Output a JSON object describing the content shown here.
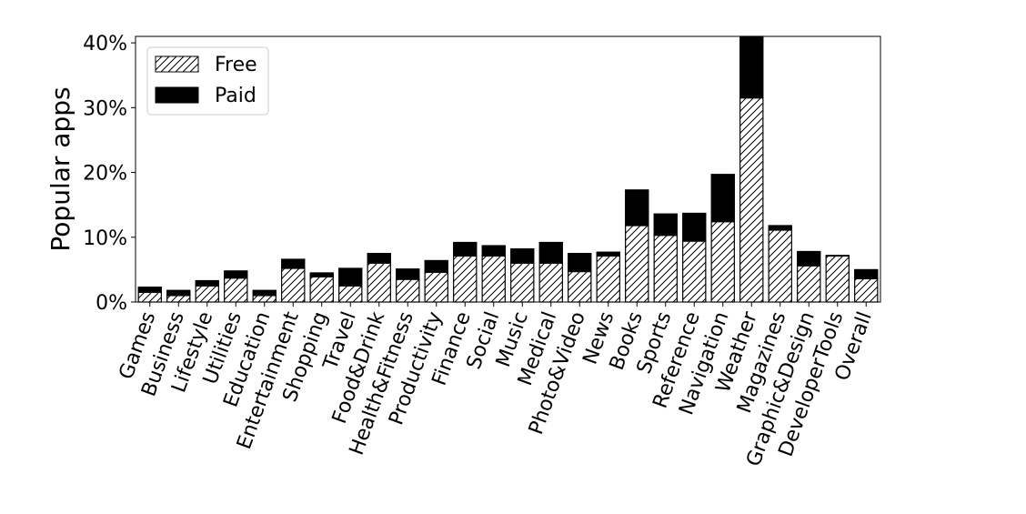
{
  "chart_data": {
    "type": "bar",
    "stacked": true,
    "ylabel": "Popular apps",
    "xlabel": "",
    "ylim": [
      0,
      41
    ],
    "yticks": [
      0,
      10,
      20,
      30,
      40
    ],
    "ytick_labels": [
      "0%",
      "10%",
      "20%",
      "30%",
      "40%"
    ],
    "legend": {
      "placement": "top-left",
      "entries": [
        "Free",
        "Paid"
      ]
    },
    "grid": false,
    "colors": {
      "free_fill": "#ffffff",
      "free_hatch": "#000000",
      "paid_fill": "#000000",
      "edge": "#000000"
    },
    "categories": [
      "Games",
      "Business",
      "Lifestyle",
      "Utilities",
      "Education",
      "Entertainment",
      "Shopping",
      "Travel",
      "Food&Drink",
      "Health&Fitness",
      "Productivity",
      "Finance",
      "Social",
      "Music",
      "Medical",
      "Photo&Video",
      "News",
      "Books",
      "Sports",
      "Reference",
      "Navigation",
      "Weather",
      "Magazines",
      "Graphic&Design",
      "DeveloperTools",
      "Overall"
    ],
    "series": [
      {
        "name": "Free",
        "values": [
          1.5,
          1.0,
          2.5,
          3.7,
          1.0,
          5.2,
          3.9,
          2.5,
          6.0,
          3.5,
          4.6,
          7.1,
          7.1,
          6.0,
          6.0,
          4.7,
          7.1,
          11.8,
          10.3,
          9.4,
          12.4,
          31.5,
          11.1,
          5.6,
          7.1,
          3.6
        ]
      },
      {
        "name": "Paid",
        "values": [
          0.8,
          0.8,
          0.8,
          1.1,
          0.8,
          1.4,
          0.6,
          2.7,
          1.5,
          1.6,
          1.8,
          2.1,
          1.6,
          2.2,
          3.2,
          2.8,
          0.6,
          5.5,
          3.3,
          4.3,
          7.3,
          10.0,
          0.7,
          2.2,
          0.1,
          1.4
        ]
      }
    ]
  }
}
